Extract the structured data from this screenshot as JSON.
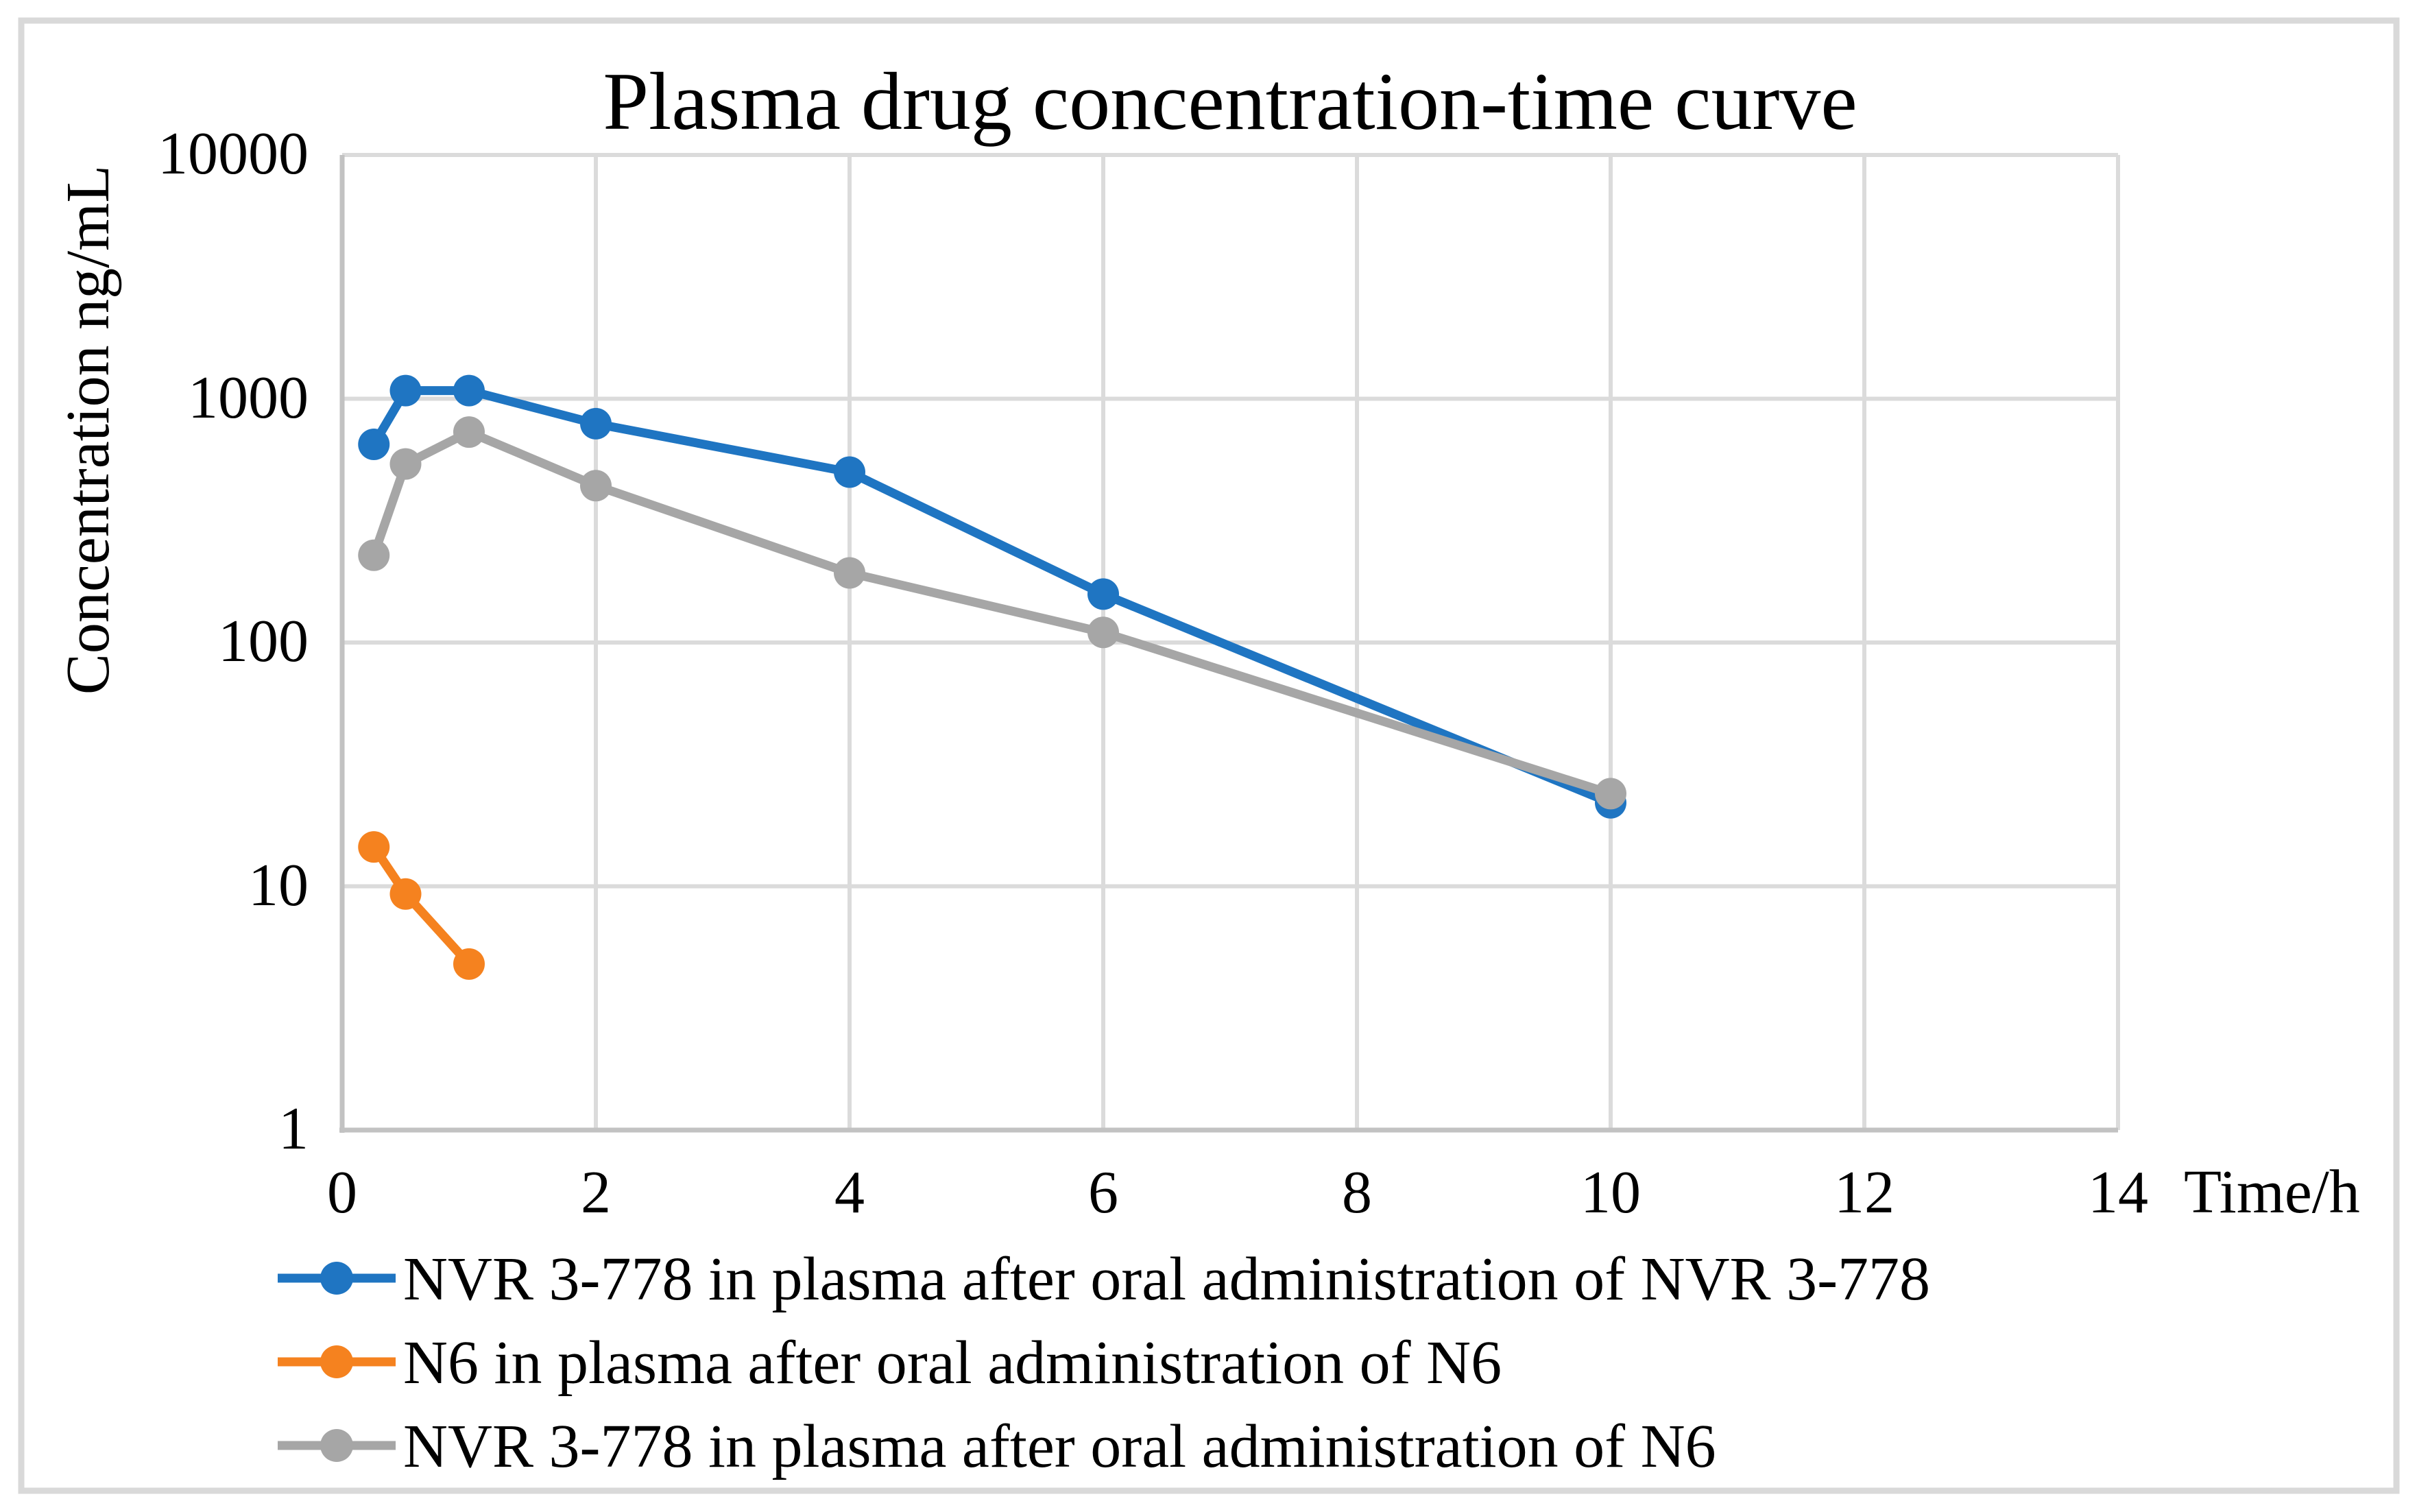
{
  "title": "Plasma drug concentration-time curve",
  "axes": {
    "y_label": "Concentration ng/mL",
    "x_label": "Time/h",
    "y_ticks": [
      "10000",
      "1000",
      "100",
      "10",
      "1"
    ],
    "x_ticks": [
      "0",
      "2",
      "4",
      "6",
      "8",
      "10",
      "12",
      "14"
    ]
  },
  "colors": {
    "gridline": "#DBDBDB",
    "axis_line": "#C2C2C2",
    "frame": "#D9D9D9",
    "text": "#000000",
    "background": "#FFFFFF"
  },
  "chart_data": {
    "type": "line",
    "title": "Plasma drug concentration-time curve",
    "xlabel": "Time/h",
    "ylabel": "Concentration ng/mL",
    "y_scale": "log",
    "ylim": [
      1,
      10000
    ],
    "xlim": [
      0,
      14
    ],
    "x_tick_values": [
      0,
      2,
      4,
      6,
      8,
      10,
      12,
      14
    ],
    "y_tick_values": [
      1,
      10,
      100,
      1000,
      10000
    ],
    "grid": true,
    "legend_position": "bottom-left",
    "marker": "circle",
    "series": [
      {
        "name": "NVR 3-778 in plasma after oral administration of NVR 3-778",
        "color": "#1F75C2",
        "x": [
          0.25,
          0.5,
          1,
          2,
          4,
          6,
          10
        ],
        "values": [
          650,
          1080,
          1080,
          790,
          500,
          158,
          22
        ]
      },
      {
        "name": "N6 in plasma after oral administration of N6",
        "color": "#F5821F",
        "x": [
          0.25,
          0.5,
          1
        ],
        "values": [
          14.5,
          9.3,
          4.8
        ]
      },
      {
        "name": "NVR 3-778 in plasma after oral administration of N6",
        "color": "#A6A6A6",
        "x": [
          0.25,
          0.5,
          1,
          2,
          4,
          6,
          10
        ],
        "values": [
          228,
          540,
          730,
          440,
          193,
          110,
          24
        ]
      }
    ]
  }
}
